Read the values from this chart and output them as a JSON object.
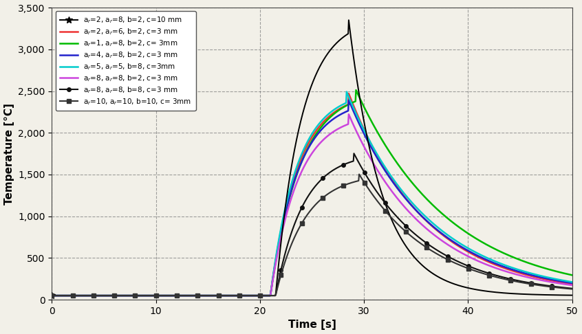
{
  "title": "",
  "xlabel": "Time [s]",
  "ylabel": "Temperature [°C]",
  "xlim": [
    0,
    50
  ],
  "ylim": [
    0,
    3500
  ],
  "yticks": [
    0,
    500,
    1000,
    1500,
    2000,
    2500,
    3000,
    3500
  ],
  "xticks": [
    0,
    10,
    20,
    30,
    40,
    50
  ],
  "bg_color": "#f2f0e8",
  "series": [
    {
      "label": "a$_r$=2, a$_r$=8, b=2, c=10 mm",
      "color": "#000000",
      "lw": 1.4,
      "marker": "*",
      "markersize": 7,
      "markevery": 1,
      "peak": 3380,
      "peak_time": 28.5,
      "rise_start": 21.5,
      "rise_tau": 1.8,
      "cool_tau": 3.2,
      "ambient": 50
    },
    {
      "label": "a$_r$=2, a$_r$=6, b=2, c=3 mm",
      "color": "#ee3333",
      "lw": 1.8,
      "marker": "none",
      "markersize": 0,
      "markevery": 1,
      "peak": 2480,
      "peak_time": 28.5,
      "rise_start": 21.0,
      "rise_tau": 2.5,
      "cool_tau": 7.5,
      "ambient": 50
    },
    {
      "label": "a$_r$=1, a$_r$=8, b=2, c= 3mm",
      "color": "#00bb00",
      "lw": 1.8,
      "marker": "none",
      "markersize": 0,
      "markevery": 1,
      "peak": 2520,
      "peak_time": 29.2,
      "rise_start": 21.0,
      "rise_tau": 2.8,
      "cool_tau": 9.0,
      "ambient": 50
    },
    {
      "label": "a$_r$=4, a$_r$=8, b=2, c=3 mm",
      "color": "#2222cc",
      "lw": 1.8,
      "marker": "none",
      "markersize": 0,
      "markevery": 1,
      "peak": 2400,
      "peak_time": 28.5,
      "rise_start": 21.0,
      "rise_tau": 2.5,
      "cool_tau": 7.8,
      "ambient": 50
    },
    {
      "label": "a$_r$=5, a$_r$=5, b=8, c=3mm",
      "color": "#00cccc",
      "lw": 1.8,
      "marker": "none",
      "markersize": 0,
      "markevery": 1,
      "peak": 2500,
      "peak_time": 28.3,
      "rise_start": 21.0,
      "rise_tau": 2.5,
      "cool_tau": 8.0,
      "ambient": 50
    },
    {
      "label": "a$_r$=8, a$_r$=8, b=2, c=3 mm",
      "color": "#cc44dd",
      "lw": 1.8,
      "marker": "none",
      "markersize": 0,
      "markevery": 1,
      "peak": 2230,
      "peak_time": 28.5,
      "rise_start": 21.0,
      "rise_tau": 2.5,
      "cool_tau": 7.5,
      "ambient": 50
    },
    {
      "label": "a$_r$=8, a$_r$=8, b=8, c=3 mm",
      "color": "#111111",
      "lw": 1.5,
      "marker": "o",
      "markersize": 4,
      "markevery": 0.04,
      "peak": 1760,
      "peak_time": 29.0,
      "rise_start": 21.5,
      "rise_tau": 2.5,
      "cool_tau": 7.0,
      "ambient": 50
    },
    {
      "label": "a$_r$=10, a$_r$=10, b=10, c= 3mm",
      "color": "#333333",
      "lw": 1.5,
      "marker": "s",
      "markersize": 4,
      "markevery": 0.04,
      "peak": 1510,
      "peak_time": 29.5,
      "rise_start": 21.5,
      "rise_tau": 2.5,
      "cool_tau": 7.0,
      "ambient": 50
    }
  ]
}
